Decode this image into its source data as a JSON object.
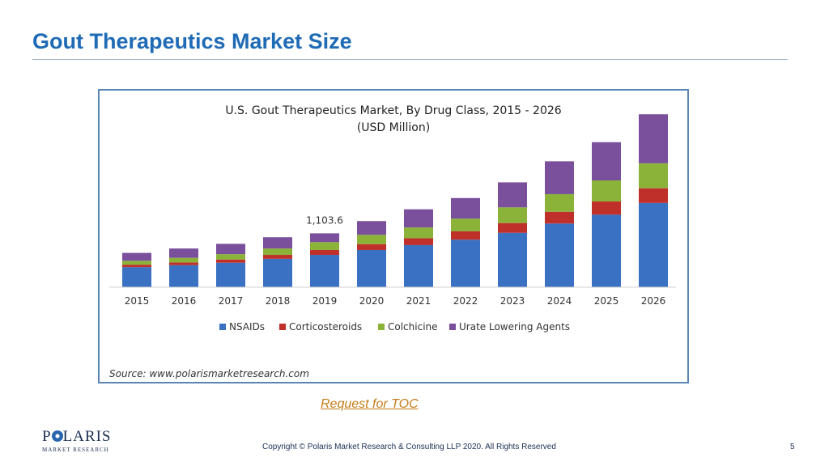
{
  "slide": {
    "title": "Gout Therapeutics Market Size",
    "toc_link": "Request for TOC",
    "copyright": "Copyright © Polaris Market Research & Consulting LLP 2020. All Rights Reserved",
    "page_number": "5",
    "logo_text": "POLARIS",
    "logo_subtext": "MARKET RESEARCH"
  },
  "chart_data": {
    "type": "bar",
    "stacked": true,
    "title": "U.S. Gout Therapeutics Market, By Drug Class, 2015 - 2026",
    "subtitle": "(USD Million)",
    "source": "Source: www.polarismarketresearch.com",
    "categories": [
      "2015",
      "2016",
      "2017",
      "2018",
      "2019",
      "2020",
      "2021",
      "2022",
      "2023",
      "2024",
      "2025",
      "2026"
    ],
    "series": [
      {
        "name": "NSAIDs",
        "color": "#3a71c2",
        "values": [
          410,
          450,
          500,
          580,
          660,
          760,
          860,
          970,
          1110,
          1300,
          1480,
          1720
        ]
      },
      {
        "name": "Corticosteroids",
        "color": "#c0302b",
        "values": [
          50,
          55,
          65,
          80,
          100,
          120,
          140,
          170,
          200,
          240,
          270,
          300
        ]
      },
      {
        "name": "Colchicine",
        "color": "#8bb33a",
        "values": [
          80,
          95,
          110,
          130,
          160,
          190,
          220,
          260,
          320,
          360,
          430,
          510
        ]
      },
      {
        "name": "Urate Lowering Agents",
        "color": "#7a4f9c",
        "values": [
          160,
          190,
          210,
          230,
          180,
          280,
          370,
          420,
          510,
          670,
          780,
          1000
        ]
      }
    ],
    "annotations": [
      {
        "category": "2019",
        "text": "1,103.6"
      }
    ],
    "ylim": [
      0,
      3600
    ],
    "legend_position": "bottom",
    "grid": false
  }
}
